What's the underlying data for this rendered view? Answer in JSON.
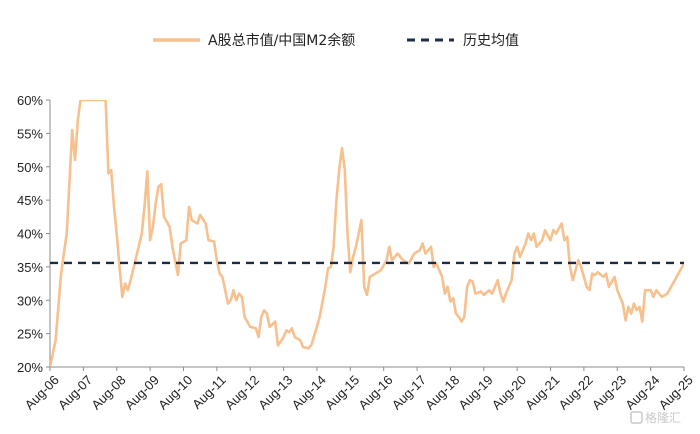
{
  "chart_data": {
    "type": "line",
    "y_unit": "%",
    "ylim": [
      20,
      60
    ],
    "yticks": [
      20,
      25,
      30,
      35,
      40,
      45,
      50,
      55,
      60
    ],
    "ytick_labels": [
      "20%",
      "25%",
      "30%",
      "35%",
      "40%",
      "45%",
      "50%",
      "55%",
      "60%"
    ],
    "xlim": [
      "2006-08",
      "2025-08"
    ],
    "xticks": [
      "2006-08",
      "2007-08",
      "2008-08",
      "2009-08",
      "2010-08",
      "2011-08",
      "2012-08",
      "2013-08",
      "2014-08",
      "2015-08",
      "2016-08",
      "2017-08",
      "2018-08",
      "2019-08",
      "2020-08",
      "2021-08",
      "2022-08",
      "2023-08",
      "2024-08",
      "2025-08"
    ],
    "xtick_labels": [
      "Aug-06",
      "Aug-07",
      "Aug-08",
      "Aug-09",
      "Aug-10",
      "Aug-11",
      "Aug-12",
      "Aug-13",
      "Aug-14",
      "Aug-15",
      "Aug-16",
      "Aug-17",
      "Aug-18",
      "Aug-19",
      "Aug-20",
      "Aug-21",
      "Aug-22",
      "Aug-23",
      "Aug-24",
      "Aug-25"
    ],
    "grid": false,
    "legend_position": "top",
    "series": [
      {
        "name": "A股总市值/中国M2余额",
        "color": "#f6c08f",
        "style": "solid",
        "points": [
          [
            "2006-08",
            20
          ],
          [
            "2006-10",
            24
          ],
          [
            "2006-12",
            34
          ],
          [
            "2007-02",
            40
          ],
          [
            "2007-04",
            55.5
          ],
          [
            "2007-05",
            51
          ],
          [
            "2007-06",
            57
          ],
          [
            "2007-07",
            60
          ],
          [
            "2008-04",
            60
          ],
          [
            "2008-05",
            49
          ],
          [
            "2008-06",
            49.5
          ],
          [
            "2008-07",
            44
          ],
          [
            "2008-08",
            40
          ],
          [
            "2008-09",
            35
          ],
          [
            "2008-10",
            30.5
          ],
          [
            "2008-11",
            32.5
          ],
          [
            "2008-12",
            31.5
          ],
          [
            "2009-01",
            33
          ],
          [
            "2009-03",
            36.5
          ],
          [
            "2009-05",
            40
          ],
          [
            "2009-06",
            44
          ],
          [
            "2009-07",
            49.3
          ],
          [
            "2009-08",
            39
          ],
          [
            "2009-09",
            41
          ],
          [
            "2009-10",
            44.5
          ],
          [
            "2009-11",
            47
          ],
          [
            "2009-12",
            47.4
          ],
          [
            "2010-01",
            42.5
          ],
          [
            "2010-03",
            41
          ],
          [
            "2010-04",
            38
          ],
          [
            "2010-06",
            33.8
          ],
          [
            "2010-07",
            38.5
          ],
          [
            "2010-09",
            39
          ],
          [
            "2010-10",
            44
          ],
          [
            "2010-11",
            42
          ],
          [
            "2011-01",
            41.5
          ],
          [
            "2011-02",
            42.8
          ],
          [
            "2011-04",
            41.5
          ],
          [
            "2011-05",
            39
          ],
          [
            "2011-07",
            38.8
          ],
          [
            "2011-08",
            36
          ],
          [
            "2011-09",
            34
          ],
          [
            "2011-10",
            33.5
          ],
          [
            "2011-12",
            29.5
          ],
          [
            "2012-01",
            30
          ],
          [
            "2012-02",
            31.5
          ],
          [
            "2012-03",
            30
          ],
          [
            "2012-04",
            31
          ],
          [
            "2012-05",
            30.5
          ],
          [
            "2012-06",
            27.5
          ],
          [
            "2012-08",
            26
          ],
          [
            "2012-10",
            25.8
          ],
          [
            "2012-11",
            24.5
          ],
          [
            "2012-12",
            27.5
          ],
          [
            "2013-01",
            28.5
          ],
          [
            "2013-02",
            28
          ],
          [
            "2013-03",
            26
          ],
          [
            "2013-05",
            26.8
          ],
          [
            "2013-06",
            23.2
          ],
          [
            "2013-08",
            24.5
          ],
          [
            "2013-09",
            25.5
          ],
          [
            "2013-10",
            25.2
          ],
          [
            "2013-11",
            25.8
          ],
          [
            "2013-12",
            24.5
          ],
          [
            "2014-02",
            24
          ],
          [
            "2014-03",
            23
          ],
          [
            "2014-05",
            22.8
          ],
          [
            "2014-06",
            23.3
          ],
          [
            "2014-08",
            26
          ],
          [
            "2014-09",
            27.5
          ],
          [
            "2014-11",
            32
          ],
          [
            "2014-12",
            34.8
          ],
          [
            "2015-01",
            35
          ],
          [
            "2015-02",
            38
          ],
          [
            "2015-03",
            45
          ],
          [
            "2015-04",
            49.5
          ],
          [
            "2015-05",
            52.8
          ],
          [
            "2015-06",
            49.5
          ],
          [
            "2015-07",
            40
          ],
          [
            "2015-08",
            34.2
          ],
          [
            "2015-09",
            36.5
          ],
          [
            "2015-10",
            38
          ],
          [
            "2015-11",
            40
          ],
          [
            "2015-12",
            42
          ],
          [
            "2016-01",
            32
          ],
          [
            "2016-02",
            30.8
          ],
          [
            "2016-03",
            33.5
          ],
          [
            "2016-05",
            34
          ],
          [
            "2016-07",
            34.5
          ],
          [
            "2016-09",
            36
          ],
          [
            "2016-10",
            38
          ],
          [
            "2016-11",
            36
          ],
          [
            "2017-01",
            37
          ],
          [
            "2017-03",
            36
          ],
          [
            "2017-05",
            35.5
          ],
          [
            "2017-07",
            37
          ],
          [
            "2017-09",
            37.5
          ],
          [
            "2017-10",
            38.5
          ],
          [
            "2017-11",
            37
          ],
          [
            "2017-12",
            37.5
          ],
          [
            "2018-01",
            38
          ],
          [
            "2018-02",
            35
          ],
          [
            "2018-03",
            35.5
          ],
          [
            "2018-05",
            33.5
          ],
          [
            "2018-06",
            31
          ],
          [
            "2018-07",
            32
          ],
          [
            "2018-08",
            29.8
          ],
          [
            "2018-09",
            30.3
          ],
          [
            "2018-10",
            28
          ],
          [
            "2018-11",
            27.5
          ],
          [
            "2018-12",
            26.8
          ],
          [
            "2019-01",
            27.5
          ],
          [
            "2019-02",
            32
          ],
          [
            "2019-03",
            33
          ],
          [
            "2019-04",
            32.8
          ],
          [
            "2019-05",
            31
          ],
          [
            "2019-07",
            31.3
          ],
          [
            "2019-08",
            30.8
          ],
          [
            "2019-10",
            31.5
          ],
          [
            "2019-11",
            31
          ],
          [
            "2020-01",
            33
          ],
          [
            "2020-02",
            31
          ],
          [
            "2020-03",
            29.8
          ],
          [
            "2020-04",
            31
          ],
          [
            "2020-06",
            33
          ],
          [
            "2020-07",
            37
          ],
          [
            "2020-08",
            38
          ],
          [
            "2020-09",
            36.5
          ],
          [
            "2020-11",
            38.5
          ],
          [
            "2020-12",
            40
          ],
          [
            "2021-01",
            39
          ],
          [
            "2021-02",
            40
          ],
          [
            "2021-03",
            38
          ],
          [
            "2021-05",
            39
          ],
          [
            "2021-06",
            40.5
          ],
          [
            "2021-08",
            39
          ],
          [
            "2021-09",
            40.5
          ],
          [
            "2021-10",
            40
          ],
          [
            "2021-12",
            41.5
          ],
          [
            "2022-01",
            39
          ],
          [
            "2022-02",
            39.5
          ],
          [
            "2022-03",
            35
          ],
          [
            "2022-04",
            33
          ],
          [
            "2022-06",
            36
          ],
          [
            "2022-07",
            35
          ],
          [
            "2022-09",
            32
          ],
          [
            "2022-10",
            31.5
          ],
          [
            "2022-11",
            34
          ],
          [
            "2022-12",
            33.8
          ],
          [
            "2023-01",
            34.2
          ],
          [
            "2023-03",
            33.5
          ],
          [
            "2023-04",
            34
          ],
          [
            "2023-05",
            32
          ],
          [
            "2023-07",
            33.5
          ],
          [
            "2023-08",
            31.5
          ],
          [
            "2023-09",
            30.5
          ],
          [
            "2023-10",
            29.5
          ],
          [
            "2023-11",
            27
          ],
          [
            "2023-12",
            29
          ],
          [
            "2024-01",
            28
          ],
          [
            "2024-02",
            29.5
          ],
          [
            "2024-03",
            28.5
          ],
          [
            "2024-04",
            29
          ],
          [
            "2024-05",
            26.8
          ],
          [
            "2024-06",
            31.5
          ],
          [
            "2024-08",
            31.5
          ],
          [
            "2024-09",
            30.5
          ],
          [
            "2024-10",
            31.5
          ],
          [
            "2024-11",
            31
          ],
          [
            "2024-12",
            30.5
          ],
          [
            "2025-02",
            31
          ],
          [
            "2025-04",
            32.5
          ],
          [
            "2025-06",
            34
          ],
          [
            "2025-08",
            35.5
          ]
        ]
      },
      {
        "name": "历史均值",
        "color": "#1f2a44",
        "style": "dashed",
        "points": [
          [
            "2006-08",
            35.6
          ],
          [
            "2025-08",
            35.6
          ]
        ]
      }
    ]
  },
  "watermark": {
    "text": "格隆汇"
  }
}
